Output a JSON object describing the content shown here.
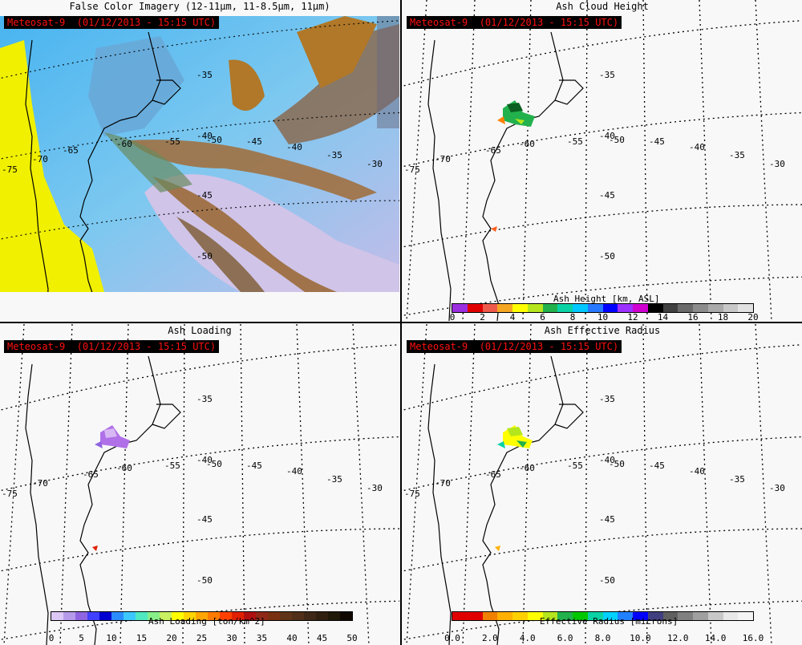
{
  "stamp": "Meteosat-9  (01/12/2013 - 15:15 UTC)",
  "panels": {
    "false_color": {
      "title": "False Color Imagery (12-11μm, 11-8.5μm, 11μm)"
    },
    "ash_height": {
      "title": "Ash Cloud Height",
      "colorbar_label": "Ash Height [km, ASL]",
      "ticks": [
        "0",
        "2",
        "4",
        "6",
        "8",
        "10",
        "12",
        "14",
        "16",
        "18",
        "20"
      ],
      "colors": [
        "#9b2fe0",
        "#e00000",
        "#ee5a4a",
        "#f5a623",
        "#ffff00",
        "#b5e61d",
        "#22b14c",
        "#0ad2a5",
        "#00c8ff",
        "#2878ff",
        "#0000ff",
        "#9b30ff",
        "#d000d0",
        "#000000",
        "#404040",
        "#6a6a6a",
        "#8c8c8c",
        "#aaaaaa",
        "#c8c8c8",
        "#e2e2e2"
      ]
    },
    "ash_loading": {
      "title": "Ash Loading",
      "colorbar_label": "Ash Loading [ton/km^2]",
      "ticks": [
        "0",
        "5",
        "10",
        "15",
        "20",
        "25",
        "30",
        "35",
        "40",
        "45",
        "50"
      ],
      "colors": [
        "#dcc8f5",
        "#b59bea",
        "#8f64e0",
        "#4040ff",
        "#0000d0",
        "#2a8cff",
        "#3cc8ff",
        "#4fe8c0",
        "#88ee88",
        "#c8f060",
        "#ffff00",
        "#ffd400",
        "#ffa500",
        "#ff7a00",
        "#ff4000",
        "#e02000",
        "#b01010",
        "#902818",
        "#783010",
        "#603418",
        "#503018",
        "#402818",
        "#302010",
        "#201808",
        "#100800"
      ]
    },
    "ash_radius": {
      "title": "Ash Effective Radius",
      "colorbar_label": "Effective Radius [microns]",
      "ticks": [
        "0.0",
        "2.0",
        "4.0",
        "6.0",
        "8.0",
        "10.0",
        "12.0",
        "14.0",
        "16.0"
      ],
      "colors": [
        "#e00000",
        "#e00000",
        "#f08000",
        "#ffb000",
        "#ffd000",
        "#ffff00",
        "#b5e61d",
        "#22b14c",
        "#00c800",
        "#0ad2a5",
        "#00d0ff",
        "#2080ff",
        "#0000ff",
        "#404080",
        "#606060",
        "#808080",
        "#a0a0a0",
        "#c8c8c8",
        "#e8e8e8",
        "#f4f4f4"
      ]
    }
  },
  "grid_labels": {
    "lat": [
      "-35",
      "-40",
      "-45",
      "-50"
    ],
    "lon": [
      "-75",
      "-70",
      "-65",
      "-60",
      "-55",
      "-50",
      "-45",
      "-40",
      "-35",
      "-30"
    ]
  }
}
